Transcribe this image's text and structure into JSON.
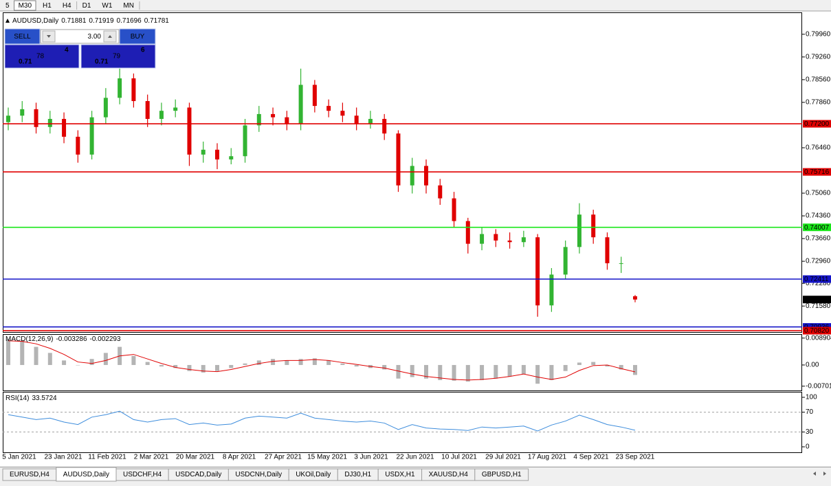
{
  "toolbar": {
    "periods": [
      "5",
      "M30",
      "H1",
      "H4",
      "D1",
      "W1",
      "MN"
    ],
    "selected": 1
  },
  "trade_panel": {
    "sell": "SELL",
    "buy": "BUY",
    "lot": "3.00",
    "sell_price": {
      "prefix": "0.71",
      "big": "78",
      "small": "4"
    },
    "buy_price": {
      "prefix": "0.71",
      "big": "79",
      "small": "6"
    }
  },
  "chart_data": [
    {
      "type": "candlestick",
      "title": "AUDUSD,Daily",
      "up_color": "#32b432",
      "down_color": "#e00000",
      "open": [
        0.7725,
        0.7745,
        0.7765,
        0.771,
        0.7735,
        0.768,
        0.7625,
        0.774,
        0.78,
        0.786,
        0.779,
        0.7735,
        0.776,
        0.777,
        0.7625,
        0.764,
        0.761,
        0.762,
        0.7715,
        0.775,
        0.774,
        0.772,
        0.784,
        0.7775,
        0.776,
        0.7745,
        0.772,
        0.7735,
        0.769,
        0.753,
        0.759,
        0.753,
        0.749,
        0.742,
        0.735,
        0.738,
        0.736,
        0.7355,
        0.737,
        0.716,
        0.7255,
        0.734,
        0.744,
        0.737,
        0.729,
        0.71881
      ],
      "high": [
        0.777,
        0.779,
        0.7785,
        0.776,
        0.7755,
        0.77,
        0.776,
        0.783,
        0.789,
        0.7875,
        0.781,
        0.7785,
        0.7795,
        0.7785,
        0.7665,
        0.766,
        0.7645,
        0.7735,
        0.7775,
        0.777,
        0.776,
        0.789,
        0.7855,
        0.7795,
        0.7785,
        0.777,
        0.776,
        0.775,
        0.77,
        0.7615,
        0.761,
        0.755,
        0.751,
        0.743,
        0.74,
        0.7395,
        0.7385,
        0.739,
        0.738,
        0.7275,
        0.736,
        0.7475,
        0.7455,
        0.7385,
        0.731,
        0.71919
      ],
      "low": [
        0.77,
        0.7725,
        0.769,
        0.769,
        0.766,
        0.76,
        0.761,
        0.772,
        0.778,
        0.777,
        0.771,
        0.7715,
        0.774,
        0.759,
        0.76,
        0.758,
        0.7595,
        0.76,
        0.7695,
        0.7715,
        0.77,
        0.77,
        0.7755,
        0.774,
        0.7725,
        0.77,
        0.7705,
        0.767,
        0.751,
        0.7505,
        0.7505,
        0.747,
        0.74,
        0.732,
        0.733,
        0.734,
        0.7335,
        0.734,
        0.7125,
        0.714,
        0.724,
        0.732,
        0.735,
        0.727,
        0.726,
        0.71696
      ],
      "close": [
        0.7745,
        0.7765,
        0.771,
        0.7735,
        0.768,
        0.7625,
        0.774,
        0.78,
        0.786,
        0.779,
        0.7735,
        0.776,
        0.777,
        0.7625,
        0.764,
        0.761,
        0.762,
        0.7715,
        0.775,
        0.774,
        0.772,
        0.784,
        0.7775,
        0.776,
        0.7745,
        0.772,
        0.7735,
        0.769,
        0.753,
        0.759,
        0.753,
        0.749,
        0.742,
        0.735,
        0.738,
        0.736,
        0.7355,
        0.737,
        0.716,
        0.7255,
        0.734,
        0.744,
        0.737,
        0.729,
        0.729,
        0.71781
      ],
      "ylim": [
        0.708,
        0.8055
      ],
      "yticks": [
        {
          "value": 0.7996,
          "label": "0.79960"
        },
        {
          "value": 0.7926,
          "label": "0.79260"
        },
        {
          "value": 0.7856,
          "label": "0.78560"
        },
        {
          "value": 0.7786,
          "label": "0.77860"
        },
        {
          "value": 0.7646,
          "label": "0.76460"
        },
        {
          "value": 0.7506,
          "label": "0.75060"
        },
        {
          "value": 0.7436,
          "label": "0.74360"
        },
        {
          "value": 0.7366,
          "label": "0.73660"
        },
        {
          "value": 0.7296,
          "label": "0.72960"
        },
        {
          "value": 0.7228,
          "label": "0.72280"
        },
        {
          "value": 0.7158,
          "label": "0.71580"
        }
      ],
      "levels": [
        {
          "value": 0.772,
          "label": "0.77200",
          "color": "#e00000"
        },
        {
          "value": 0.75716,
          "label": "0.75716",
          "color": "#e00000"
        },
        {
          "value": 0.74007,
          "label": "0.74007",
          "color": "#19e619"
        },
        {
          "value": 0.72411,
          "label": "0.72411",
          "color": "#1414c8"
        },
        {
          "value": 0.70936,
          "label": "0.70936",
          "color": "#1414c8"
        },
        {
          "value": 0.7082,
          "label": "0.70820",
          "color": "#e00000"
        }
      ],
      "x_labels": [
        "5 Jan 2021",
        "23 Jan 2021",
        "11 Feb 2021",
        "2 Mar 2021",
        "20 Mar 2021",
        "8 Apr 2021",
        "27 Apr 2021",
        "15 May 2021",
        "3 Jun 2021",
        "22 Jun 2021",
        "10 Jul 2021",
        "29 Jul 2021",
        "17 Aug 2021",
        "4 Sep 2021",
        "23 Sep 2021"
      ]
    },
    {
      "type": "combo",
      "title": "MACD(12,26,9)",
      "series": [
        {
          "type": "bar",
          "color": "#b4b4b4",
          "values": [
            0.0085,
            0.008,
            0.006,
            0.004,
            0.0015,
            0.0,
            0.002,
            0.004,
            0.006,
            0.003,
            0.001,
            -0.0005,
            -0.001,
            -0.002,
            -0.0025,
            -0.002,
            -0.001,
            0.0005,
            0.0015,
            0.002,
            0.0015,
            0.002,
            0.0022,
            0.0015,
            0.0005,
            -0.0005,
            -0.001,
            -0.0015,
            -0.0045,
            -0.004,
            -0.0045,
            -0.005,
            -0.0052,
            -0.0055,
            -0.005,
            -0.0045,
            -0.0038,
            -0.003,
            -0.0062,
            -0.005,
            -0.002,
            0.0008,
            0.001,
            -0.0005,
            -0.0015,
            -0.003286
          ]
        },
        {
          "type": "line",
          "color": "#e00000",
          "values": [
            0.008,
            0.0078,
            0.007,
            0.0055,
            0.0035,
            0.001,
            0.0005,
            0.0015,
            0.003,
            0.0035,
            0.002,
            0.0005,
            -0.0008,
            -0.0015,
            -0.002,
            -0.0022,
            -0.0015,
            -0.0005,
            0.0005,
            0.0012,
            0.0015,
            0.0015,
            0.0018,
            0.0015,
            0.0008,
            0.0002,
            -0.0005,
            -0.001,
            -0.002,
            -0.003,
            -0.0038,
            -0.0043,
            -0.0048,
            -0.005,
            -0.0048,
            -0.0044,
            -0.0038,
            -0.003,
            -0.004,
            -0.0048,
            -0.004,
            -0.0018,
            -0.0002,
            0.0,
            -0.0012,
            -0.002293
          ]
        }
      ],
      "ylim": [
        -0.0082,
        0.01
      ],
      "yticks": [
        0.008904,
        {
          "value": 0,
          "label": "0.00"
        },
        -0.007013
      ]
    },
    {
      "type": "line",
      "title": "RSI(14)",
      "color": "#3c8cdc",
      "values": [
        65,
        60,
        55,
        58,
        50,
        45,
        60,
        65,
        72,
        55,
        50,
        55,
        57,
        45,
        48,
        44,
        46,
        58,
        62,
        60,
        58,
        68,
        58,
        55,
        52,
        50,
        52,
        48,
        35,
        45,
        38,
        36,
        35,
        33,
        40,
        38,
        40,
        42,
        32,
        44,
        52,
        64,
        55,
        45,
        40,
        33.5724
      ],
      "ylim": [
        0,
        100
      ],
      "yticks": [
        100,
        70,
        30,
        0
      ]
    }
  ],
  "tabs": {
    "items": [
      "EURUSD,H4",
      "AUDUSD,Daily",
      "USDCHF,H4",
      "USDCAD,Daily",
      "USDCNH,Daily",
      "UKOil,Daily",
      "DJ30,H1",
      "USDX,H1",
      "XAUUSD,H4",
      "GBPUSD,H1"
    ],
    "active": 1
  }
}
